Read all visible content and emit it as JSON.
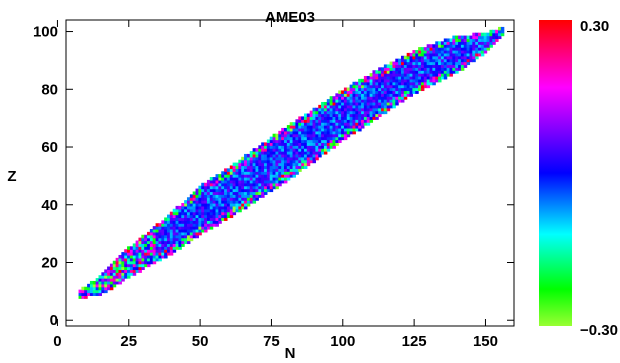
{
  "chart_data": {
    "type": "heatmap",
    "title": "AME03",
    "xlabel": "N",
    "ylabel": "Z",
    "xlim": [
      3,
      160
    ],
    "ylim": [
      -2,
      104
    ],
    "xticks": [
      0,
      25,
      50,
      75,
      100,
      125,
      150
    ],
    "xtick_labels": [
      "0",
      "25",
      "50",
      "75",
      "100",
      "125",
      "150"
    ],
    "yticks": [
      0,
      20,
      40,
      60,
      80,
      100
    ],
    "ytick_labels": [
      "0",
      "20",
      "40",
      "60",
      "80",
      "100"
    ],
    "colorbar": {
      "min": -0.3,
      "max": 0.3,
      "max_label": "0.30",
      "min_label": "−0.30",
      "colors_top_to_bottom": [
        "#ff0000",
        "#ff00ff",
        "#0000ff",
        "#00ffff",
        "#00ff00",
        "#99ff33"
      ]
    },
    "nuclide_band": {
      "description_hidden": true,
      "centerline": [
        [
          8,
          9
        ],
        [
          15,
          12
        ],
        [
          25,
          20
        ],
        [
          40,
          30
        ],
        [
          50,
          38
        ],
        [
          60,
          44
        ],
        [
          75,
          54
        ],
        [
          90,
          64
        ],
        [
          100,
          71
        ],
        [
          115,
          80
        ],
        [
          125,
          86
        ],
        [
          140,
          92
        ],
        [
          150,
          96
        ],
        [
          156,
          100
        ]
      ],
      "z_halfwidth": [
        [
          8,
          1
        ],
        [
          20,
          4
        ],
        [
          50,
          8
        ],
        [
          80,
          9
        ],
        [
          110,
          8
        ],
        [
          140,
          6
        ],
        [
          156,
          1
        ]
      ]
    }
  }
}
